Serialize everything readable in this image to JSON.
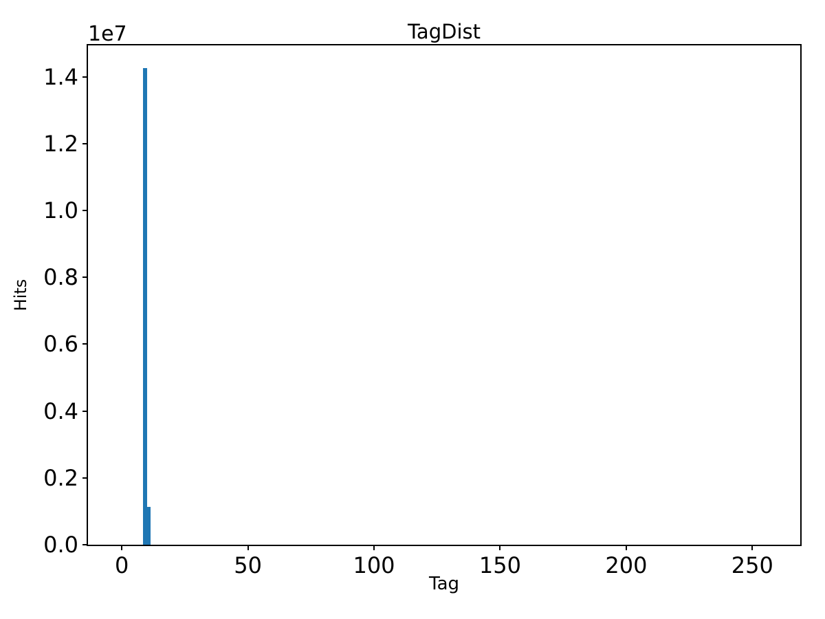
{
  "figure": {
    "background": "#ffffff",
    "axis_color": "#000000",
    "text_color": "#000000"
  },
  "chart_data": {
    "type": "bar",
    "title": "TagDist",
    "xlabel": "Tag",
    "ylabel": "Hits",
    "y_offset_label": "1e7",
    "xlim": [
      -13.4,
      269.0
    ],
    "ylim": [
      0,
      14940000
    ],
    "grid": false,
    "legend": null,
    "bar_color": "#1f77b4",
    "x_ticks": [
      {
        "value": 0,
        "label": "0"
      },
      {
        "value": 50,
        "label": "50"
      },
      {
        "value": 100,
        "label": "100"
      },
      {
        "value": 150,
        "label": "150"
      },
      {
        "value": 200,
        "label": "200"
      },
      {
        "value": 250,
        "label": "250"
      }
    ],
    "y_ticks": [
      {
        "value": 0,
        "label": "0.0"
      },
      {
        "value": 2000000,
        "label": "0.2"
      },
      {
        "value": 4000000,
        "label": "0.4"
      },
      {
        "value": 6000000,
        "label": "0.6"
      },
      {
        "value": 8000000,
        "label": "0.8"
      },
      {
        "value": 10000000,
        "label": "1.0"
      },
      {
        "value": 12000000,
        "label": "1.2"
      },
      {
        "value": 14000000,
        "label": "1.4"
      }
    ],
    "bars": [
      {
        "x_start": 8.5,
        "x_end": 10.1,
        "hits": 14260000
      },
      {
        "x_start": 10.1,
        "x_end": 11.5,
        "hits": 1130000
      }
    ]
  }
}
